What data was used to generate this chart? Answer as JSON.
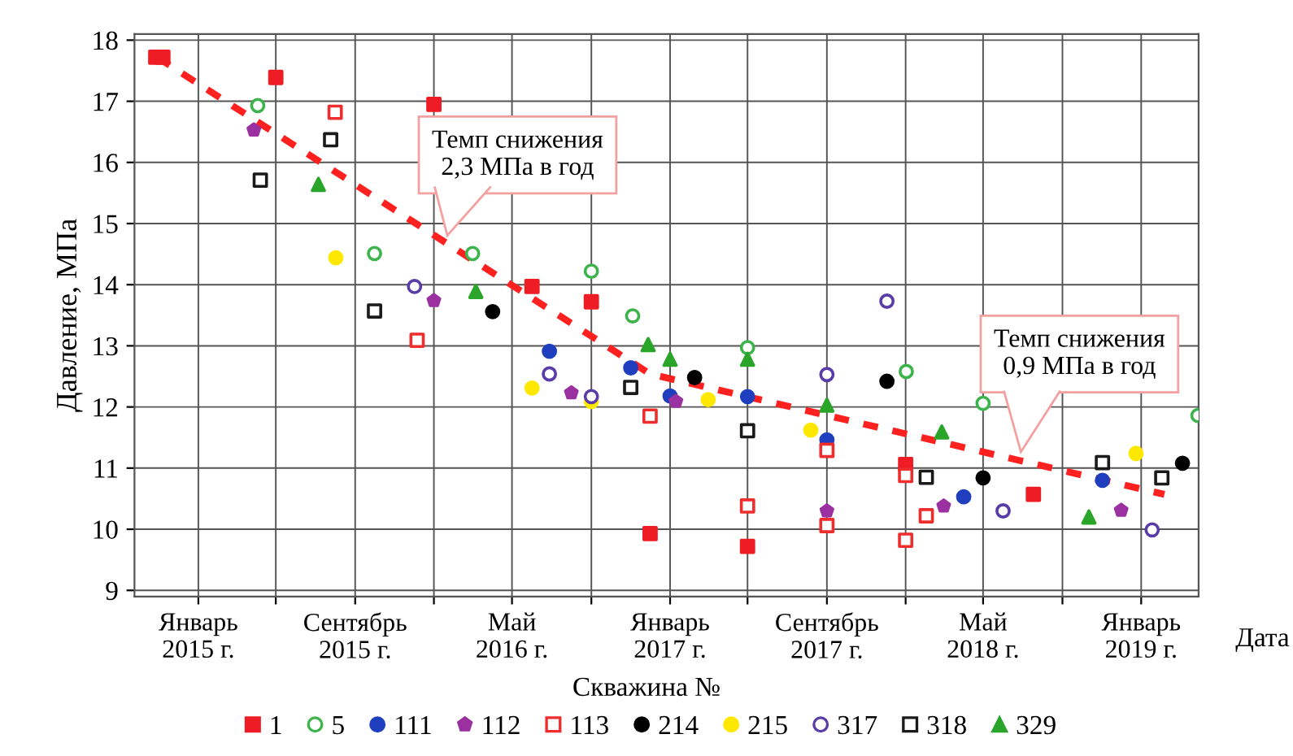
{
  "chart_data": {
    "type": "scatter",
    "ylabel": "Давление, МПа",
    "xlabel": "Дата",
    "legend_title": "Скважина №",
    "xlim": [
      "2014-09-24",
      "2019-03-31"
    ],
    "ylim": [
      8.9,
      18.1
    ],
    "yticks": [
      9,
      10,
      11,
      12,
      13,
      14,
      15,
      16,
      17,
      18
    ],
    "xticks": [
      {
        "value": "2015-01-01",
        "label": "Январь\n2015 г."
      },
      {
        "value": "2015-05-01",
        "label": null
      },
      {
        "value": "2015-09-01",
        "label": "Сентябрь\n2015 г."
      },
      {
        "value": "2016-01-01",
        "label": null
      },
      {
        "value": "2016-05-01",
        "label": "Май\n2016 г."
      },
      {
        "value": "2016-09-01",
        "label": null
      },
      {
        "value": "2017-01-01",
        "label": "Январь\n2017 г."
      },
      {
        "value": "2017-05-01",
        "label": null
      },
      {
        "value": "2017-09-01",
        "label": "Сентябрь\n2017 г."
      },
      {
        "value": "2018-01-01",
        "label": null
      },
      {
        "value": "2018-05-01",
        "label": "Май\n2018 г."
      },
      {
        "value": "2018-09-01",
        "label": null
      },
      {
        "value": "2019-01-01",
        "label": "Январь\n2019 г."
      }
    ],
    "grid": true,
    "legend": "bottom",
    "annotations": [
      "Темп снижения\n2,3 МПа в год",
      "Темп снижения\n0,9 МПа в год"
    ],
    "series": [
      {
        "name": "1",
        "color": "#ee1c25",
        "marker": "square",
        "x": [
          "2014-10-27",
          "2014-11-07",
          "2015-05-01",
          "2016-01-01",
          "2016-06-01",
          "2016-09-01",
          "2016-12-01",
          "2017-05-01",
          "2018-01-01",
          "2018-07-18"
        ],
        "values": [
          17.72,
          17.72,
          17.39,
          16.95,
          13.97,
          13.72,
          9.93,
          9.72,
          11.06,
          10.57
        ]
      },
      {
        "name": "5",
        "color": "#3cb44b",
        "marker": "circle-open",
        "x": [
          "2015-04-03",
          "2015-10-01",
          "2016-03-01",
          "2016-09-01",
          "2016-11-04",
          "2017-05-01",
          "2018-01-02",
          "2018-05-01",
          "2019-03-30"
        ],
        "values": [
          16.93,
          14.51,
          14.51,
          14.22,
          13.49,
          12.97,
          12.58,
          12.06,
          11.86
        ]
      },
      {
        "name": "111",
        "color": "#1f3fbf",
        "marker": "circle",
        "x": [
          "2016-06-28",
          "2016-11-01",
          "2017-01-01",
          "2017-05-01",
          "2017-09-01",
          "2018-04-01",
          "2018-11-02"
        ],
        "values": [
          12.91,
          12.64,
          12.18,
          12.17,
          11.46,
          10.53,
          10.8
        ]
      },
      {
        "name": "112",
        "color": "#9b30a0",
        "x": [
          "2015-03-28",
          "2016-01-01",
          "2016-08-01",
          "2017-01-10",
          "2017-09-01",
          "2018-03-01",
          "2018-12-01"
        ],
        "values": [
          16.53,
          13.74,
          12.23,
          12.09,
          10.3,
          10.38,
          10.31
        ]
      },
      {
        "name": "113",
        "color": "#ee2d2d",
        "marker": "square-open",
        "x": [
          "2015-08-01",
          "2015-12-06",
          "2016-12-01",
          "2017-05-01",
          "2017-09-01",
          "2017-09-01",
          "2018-01-01",
          "2018-01-01",
          "2018-02-02"
        ],
        "values": [
          16.82,
          13.09,
          11.85,
          10.38,
          11.29,
          10.06,
          10.88,
          9.82,
          10.22
        ]
      },
      {
        "name": "214",
        "color": "#000000",
        "marker": "circle",
        "x": [
          "2016-04-01",
          "2017-02-08",
          "2017-12-03",
          "2018-05-01",
          "2019-03-06"
        ],
        "values": [
          13.56,
          12.48,
          12.42,
          10.84,
          11.08
        ]
      },
      {
        "name": "215",
        "color": "#ffe800",
        "marker": "circle",
        "x": [
          "2015-08-02",
          "2016-06-01",
          "2016-09-01",
          "2017-03-01",
          "2017-08-07",
          "2018-12-24"
        ],
        "values": [
          14.44,
          12.31,
          12.09,
          12.12,
          11.62,
          11.24
        ]
      },
      {
        "name": "317",
        "color": "#5a3ca8",
        "marker": "circle-open",
        "x": [
          "2015-12-02",
          "2016-06-28",
          "2016-09-01",
          "2017-09-01",
          "2017-12-03",
          "2018-06-01",
          "2019-01-18"
        ],
        "values": [
          13.97,
          12.54,
          12.17,
          12.53,
          13.73,
          10.3,
          9.99
        ]
      },
      {
        "name": "318",
        "color": "#1a1a1a",
        "marker": "square-open",
        "x": [
          "2015-04-07",
          "2015-07-25",
          "2015-10-01",
          "2016-11-01",
          "2017-05-01",
          "2018-02-02",
          "2018-11-02",
          "2019-02-02"
        ],
        "values": [
          15.71,
          16.37,
          13.57,
          12.32,
          11.61,
          10.85,
          11.09,
          10.84
        ]
      },
      {
        "name": "329",
        "color": "#2aa52a",
        "marker": "triangle",
        "x": [
          "2015-07-06",
          "2016-03-06",
          "2016-11-28",
          "2017-01-01",
          "2017-05-01",
          "2017-09-01",
          "2018-02-26",
          "2018-10-12"
        ],
        "values": [
          15.64,
          13.89,
          13.02,
          12.78,
          12.78,
          12.03,
          11.59,
          10.2
        ]
      },
      {
        "type": "line",
        "color": "#ff2020",
        "line_style": "dashed",
        "x": [
          "2014-10-29",
          "2016-12-01",
          "2019-02-06"
        ],
        "values": [
          17.72,
          12.54,
          10.57
        ]
      }
    ]
  }
}
